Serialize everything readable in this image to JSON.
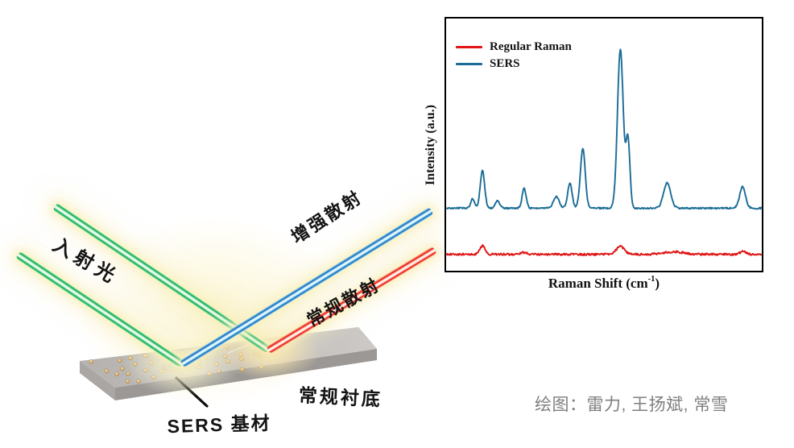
{
  "figure": {
    "credit": "绘图：雷力, 王扬斌, 常雪"
  },
  "diagram": {
    "labels": {
      "incident_light": "入射光",
      "enhanced_scattering": "增强散射",
      "regular_scattering": "常规散射",
      "regular_substrate": "常规衬底",
      "sers_substrate": "SERS 基材"
    },
    "colors": {
      "incident_beam_green": "#12A94F",
      "enhanced_beam_blue": "#1268B8",
      "regular_beam_red": "#E81106",
      "substrate_top": "#C2BFBD",
      "substrate_front": "#9B9896",
      "nanoparticle_gold": "#DDB470",
      "beam_glow": "#FAF0BE",
      "spot_blue": "#1F86BD",
      "spot_red": "#F04018"
    },
    "nanoparticle_count": 34
  },
  "chart": {
    "legend": [
      {
        "label": "Regular Raman",
        "color": "#E01515"
      },
      {
        "label": "SERS",
        "color": "#1B6C96"
      }
    ],
    "ylabel": "Intensity (a.u.)",
    "xlabel_main": "Raman Shift (cm",
    "xlabel_sup": "-1",
    "xlabel_end": ")"
  },
  "chart_data": {
    "type": "line",
    "title": "",
    "xlabel": "Raman Shift (cm⁻¹)",
    "ylabel": "Intensity (a.u.)",
    "axes_ticks": "none (arbitrary units, no tick labels shown)",
    "legend_position": "top-left inside plot",
    "grid": false,
    "x_range": [
      0,
      1
    ],
    "y_note": "values are fraction of plot height measured from top; baseline minus Gaussian peaks",
    "series": [
      {
        "name": "SERS",
        "color": "#1B6C96",
        "baseline": 0.752,
        "noise": 0.006,
        "stroke_width": 1.9,
        "peaks": [
          {
            "x": 0.084,
            "amp": 0.038,
            "w": 0.008
          },
          {
            "x": 0.115,
            "amp": 0.148,
            "w": 0.01
          },
          {
            "x": 0.163,
            "amp": 0.03,
            "w": 0.01
          },
          {
            "x": 0.247,
            "amp": 0.078,
            "w": 0.009
          },
          {
            "x": 0.349,
            "amp": 0.046,
            "w": 0.013
          },
          {
            "x": 0.392,
            "amp": 0.1,
            "w": 0.01
          },
          {
            "x": 0.433,
            "amp": 0.235,
            "w": 0.011
          },
          {
            "x": 0.552,
            "amp": 0.63,
            "w": 0.013
          },
          {
            "x": 0.576,
            "amp": 0.27,
            "w": 0.009
          },
          {
            "x": 0.7,
            "amp": 0.1,
            "w": 0.016
          },
          {
            "x": 0.939,
            "amp": 0.085,
            "w": 0.013
          }
        ]
      },
      {
        "name": "Regular Raman",
        "color": "#E01515",
        "baseline": 0.935,
        "noise": 0.008,
        "stroke_width": 1.9,
        "peaks": [
          {
            "x": 0.115,
            "amp": 0.034,
            "w": 0.011
          },
          {
            "x": 0.245,
            "amp": 0.007,
            "w": 0.015
          },
          {
            "x": 0.552,
            "amp": 0.031,
            "w": 0.018
          },
          {
            "x": 0.72,
            "amp": 0.01,
            "w": 0.045
          },
          {
            "x": 0.94,
            "amp": 0.012,
            "w": 0.013
          }
        ]
      }
    ]
  }
}
